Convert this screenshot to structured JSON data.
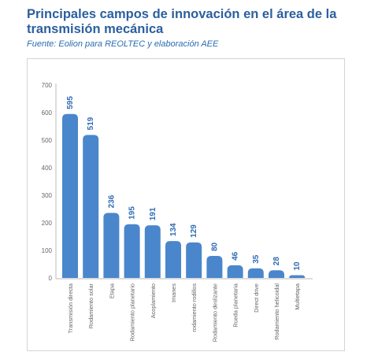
{
  "title": "Principales campos de innovación en el área de la transmisión mecánica",
  "subtitle": "Fuente: Eolion para REOLTEC y elaboración AEE",
  "colors": {
    "bar": "#4a86cc",
    "label": "#2f6bb5",
    "title": "#2b5f9e",
    "axis": "#666666"
  },
  "chart_data": {
    "type": "bar",
    "title": "",
    "xlabel": "",
    "ylabel": "",
    "ylim": [
      0,
      700
    ],
    "yticks": [
      "0",
      "100",
      "200",
      "300",
      "400",
      "500",
      "600",
      "700"
    ],
    "grid": false,
    "legend": "none",
    "categories": [
      "Transmisión directa",
      "Rodamiento solar",
      "Etapa",
      "Rodamiento planetario",
      "Acoplamiento",
      "Imanes",
      "rodamiento rodillos",
      "Rodamiento deslizante",
      "Rueda planetaria",
      "Direct drive",
      "Rodamiento helicoidal",
      "Multietapa"
    ],
    "values": [
      595,
      519,
      236,
      195,
      191,
      134,
      129,
      80,
      46,
      35,
      28,
      10
    ],
    "data_labels": [
      "595",
      "519",
      "236",
      "195",
      "191",
      "134",
      "129",
      "80",
      "46",
      "35",
      "28",
      "10"
    ]
  }
}
